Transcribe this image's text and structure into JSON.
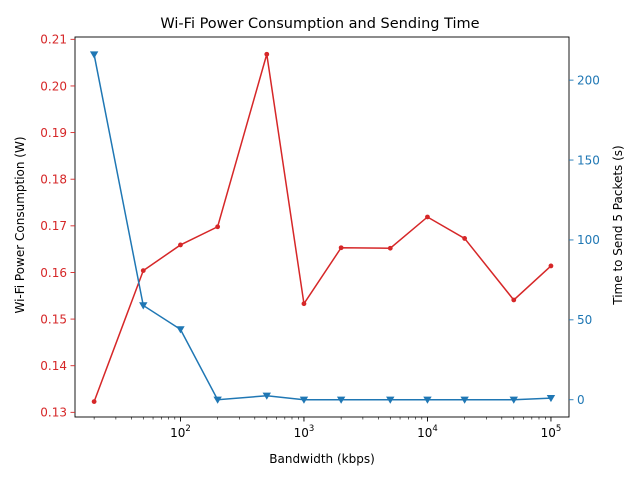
{
  "chart_data": {
    "type": "line",
    "title": "Wi-Fi Power Consumption and Sending Time",
    "xlabel": "Bandwidth (kbps)",
    "xscale": "log",
    "xlim": [
      14,
      140000
    ],
    "xticks": [
      {
        "value": 100,
        "base": "10",
        "exp": "2"
      },
      {
        "value": 1000,
        "base": "10",
        "exp": "3"
      },
      {
        "value": 10000,
        "base": "10",
        "exp": "4"
      },
      {
        "value": 100000,
        "base": "10",
        "exp": "5"
      }
    ],
    "x": [
      20,
      50,
      100,
      200,
      500,
      1000,
      2000,
      5000,
      10000,
      20000,
      50000,
      100000
    ],
    "y_left": {
      "label": "Wi-Fi Power Consumption (W)",
      "color": "#d62728",
      "ylim": [
        0.129,
        0.2105
      ],
      "ticks": [
        "0.13",
        "0.14",
        "0.15",
        "0.16",
        "0.17",
        "0.18",
        "0.19",
        "0.20",
        "0.21"
      ],
      "values": [
        0.1323,
        0.1604,
        0.1659,
        0.1698,
        0.2068,
        0.1533,
        0.1653,
        0.1652,
        0.1719,
        0.1673,
        0.1541,
        0.1614
      ],
      "marker": "circle"
    },
    "y_right": {
      "label": "Time to Send 5 Packets (s)",
      "color": "#1f77b4",
      "ylim": [
        -10.8,
        227
      ],
      "ticks": [
        "0",
        "50",
        "100",
        "150",
        "200"
      ],
      "values": [
        216,
        59,
        44,
        0,
        2.5,
        0,
        0,
        0,
        0,
        0,
        0,
        1
      ],
      "marker": "triangle-down"
    }
  }
}
